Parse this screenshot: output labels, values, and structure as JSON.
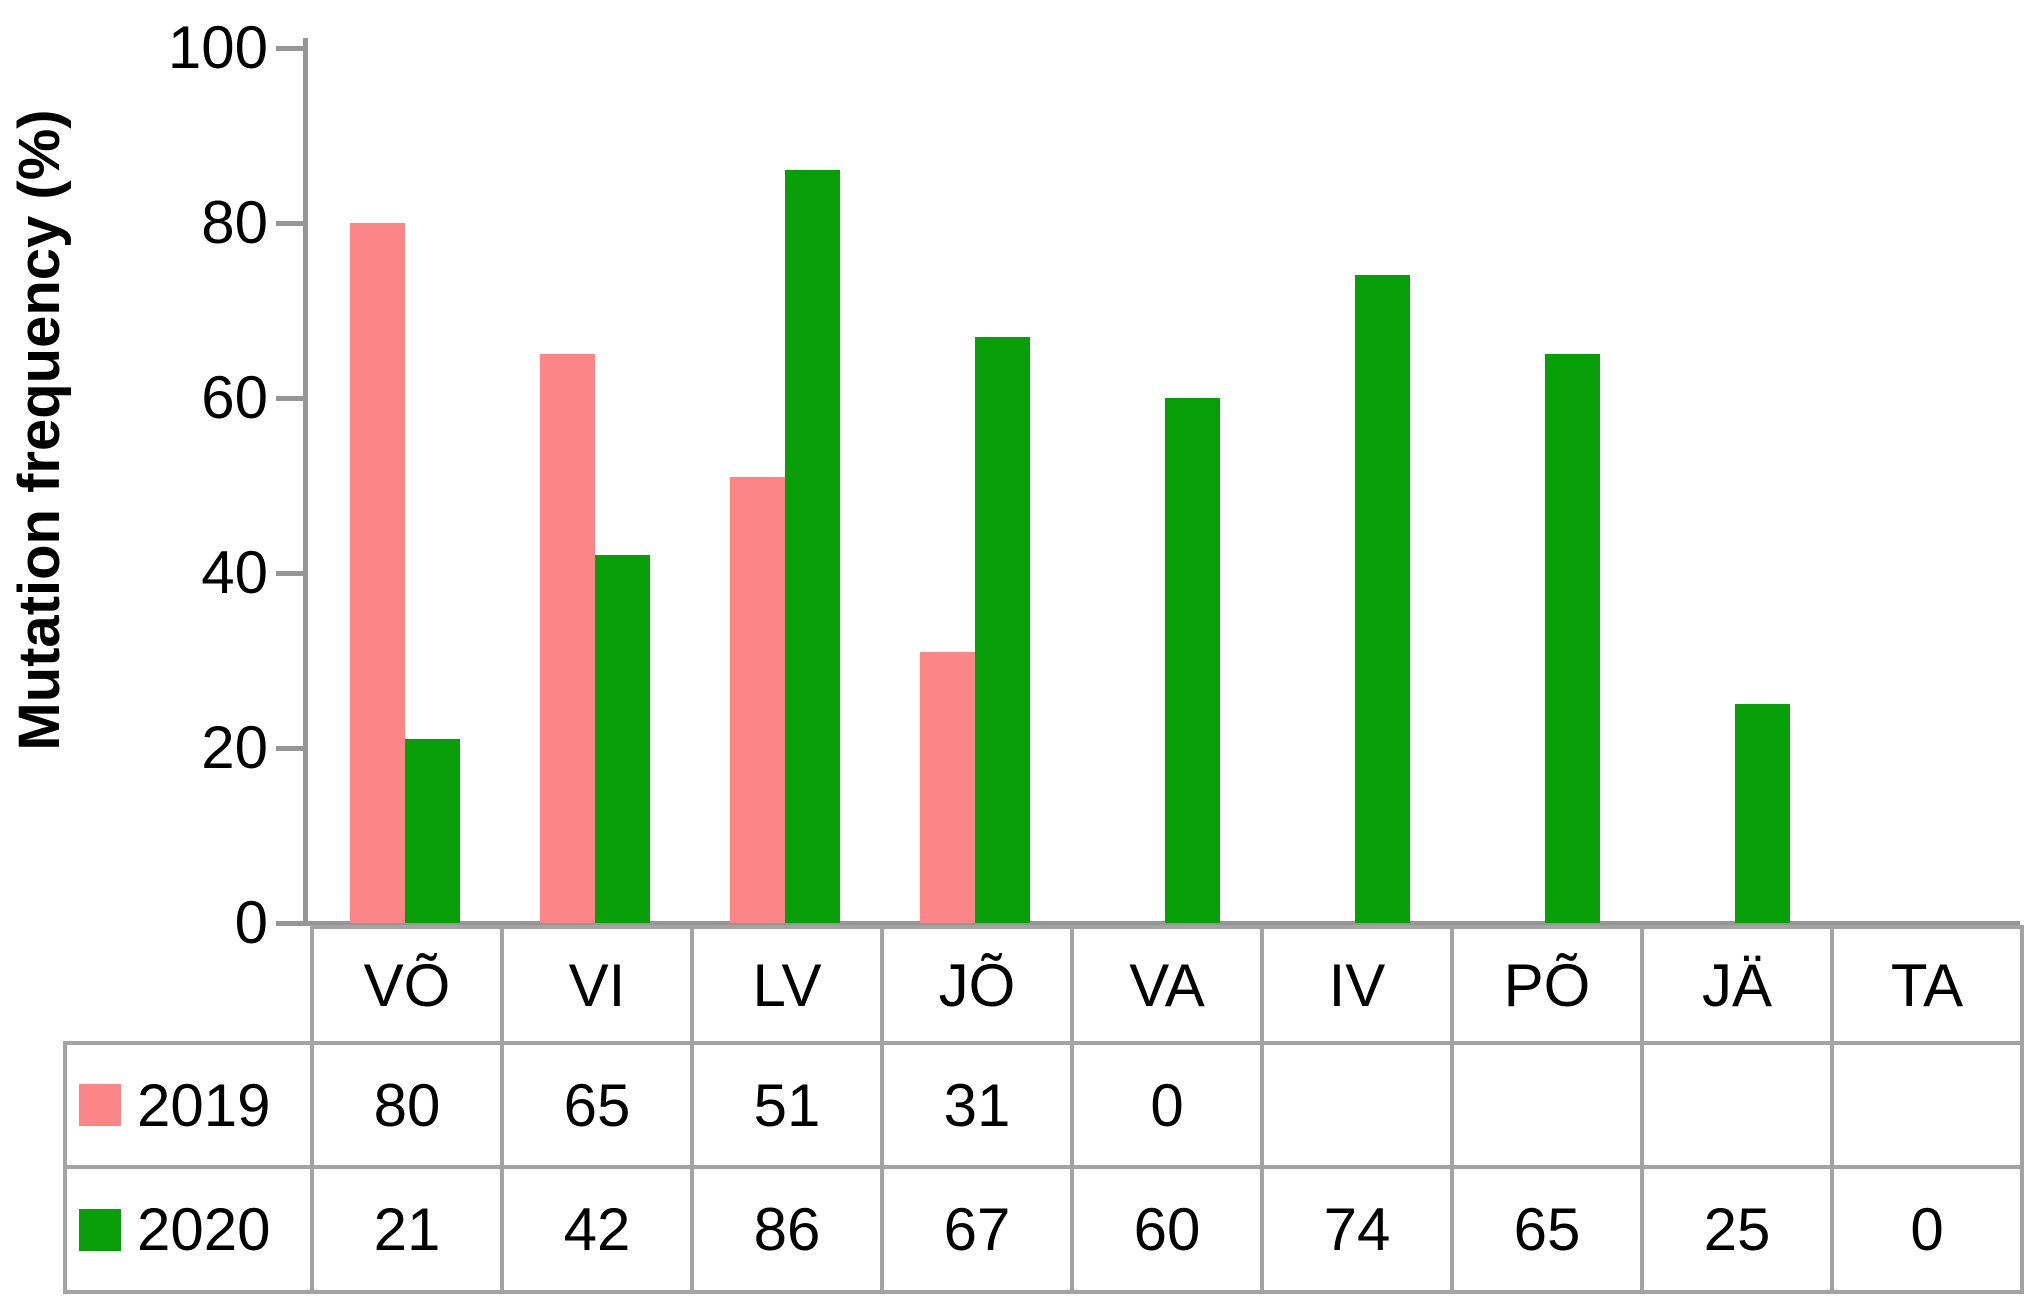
{
  "chart_data": {
    "type": "bar",
    "title": "",
    "ylabel": "Mutation frequency (%)",
    "xlabel": "",
    "ylim": [
      0,
      100
    ],
    "ytick_values": [
      0,
      20,
      40,
      60,
      80,
      100
    ],
    "grid": false,
    "legend_position": "left column of data table below plot",
    "categories": [
      "VÕ",
      "VI",
      "LV",
      "JÕ",
      "VA",
      "IV",
      "PÕ",
      "JÄ",
      "TA"
    ],
    "series": [
      {
        "name": "2019",
        "color": "#FC8587",
        "values": [
          80,
          65,
          51,
          31,
          0,
          null,
          null,
          null,
          null
        ]
      },
      {
        "name": "2020",
        "color": "#079E07",
        "values": [
          21,
          42,
          86,
          67,
          60,
          74,
          65,
          25,
          0
        ]
      }
    ]
  },
  "table": {
    "rows": [
      {
        "label": "2019",
        "cells": [
          "80",
          "65",
          "51",
          "31",
          "0",
          "",
          "",
          "",
          ""
        ]
      },
      {
        "label": "2020",
        "cells": [
          "21",
          "42",
          "86",
          "67",
          "60",
          "74",
          "65",
          "25",
          "0"
        ]
      }
    ]
  },
  "colors": {
    "series_2019": "#FC8587",
    "series_2020": "#079E07",
    "axis": "#969696",
    "table_border": "#A3A3A3",
    "text": "#000000",
    "background": "#FFFFFF"
  }
}
